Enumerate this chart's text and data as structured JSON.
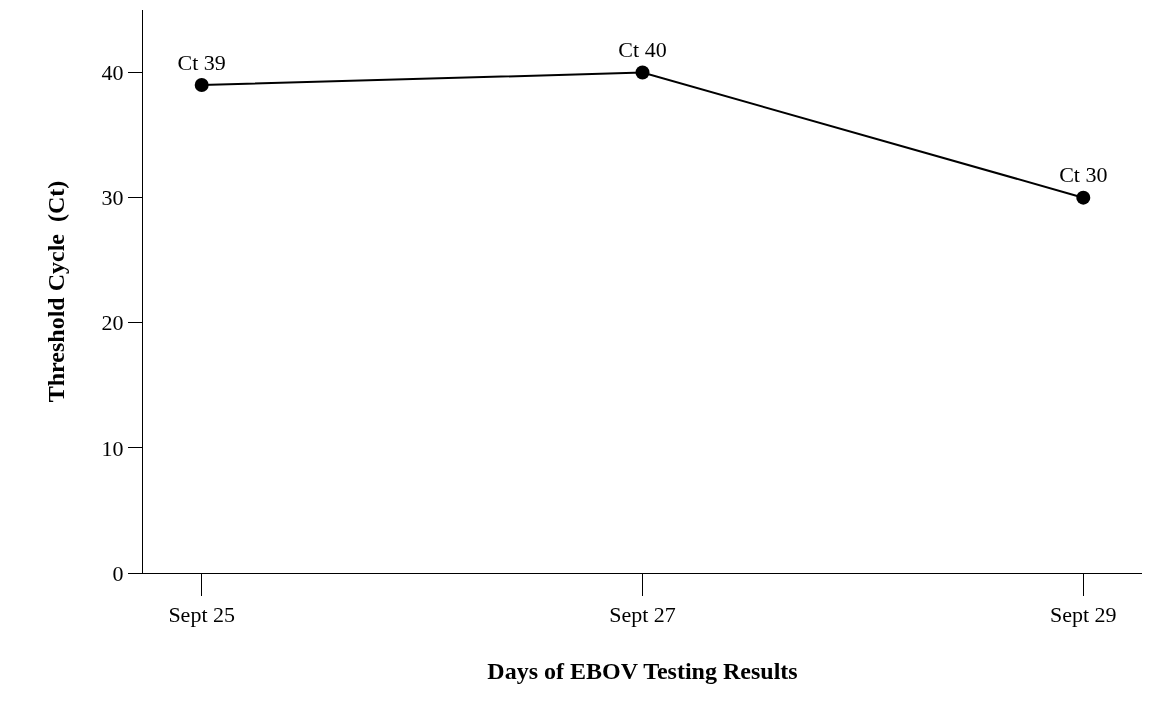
{
  "chart_data": {
    "type": "line",
    "xlabel": "Days of EBOV Testing Results",
    "ylabel": "Threshold Cycle  (Ct)",
    "categories": [
      "Sept 25",
      "Sept 27",
      "Sept 29"
    ],
    "values": [
      39,
      40,
      30
    ],
    "value_labels": [
      "Ct 39",
      "Ct 40",
      "Ct 30"
    ],
    "color": "#000000",
    "marker": "circle",
    "line_style": "solid",
    "ylim": [
      0,
      45
    ],
    "yticks": [
      0,
      10,
      20,
      30,
      40
    ]
  }
}
